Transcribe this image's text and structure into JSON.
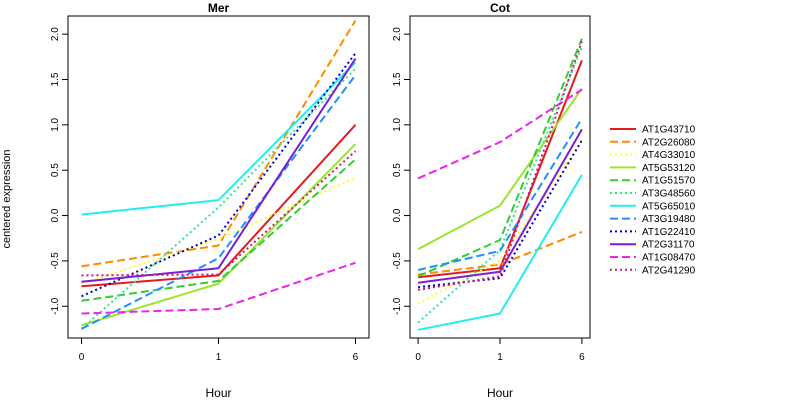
{
  "figure": {
    "ylabel": "centered expression",
    "xlabel": "Hour"
  },
  "chart_data": [
    {
      "type": "line",
      "title": "Mer",
      "xlabel": "Hour",
      "ylabel": "centered expression",
      "x_categories": [
        "0",
        "1",
        "6"
      ],
      "ylim": [
        -1.35,
        2.2
      ],
      "y_ticks": [
        -1.0,
        -0.5,
        0.0,
        0.5,
        1.0,
        1.5,
        2.0
      ],
      "grid": false,
      "series": [
        {
          "name": "AT1G43710",
          "values": [
            -0.78,
            -0.66,
            1.0
          ]
        },
        {
          "name": "AT2G26080",
          "values": [
            -0.56,
            -0.33,
            2.15
          ]
        },
        {
          "name": "AT4G33010",
          "values": [
            -0.75,
            -0.26,
            0.42
          ]
        },
        {
          "name": "AT5G53120",
          "values": [
            -1.21,
            -0.75,
            0.79
          ]
        },
        {
          "name": "AT1G51570",
          "values": [
            -0.94,
            -0.72,
            0.62
          ]
        },
        {
          "name": "AT3G48560",
          "values": [
            -1.25,
            0.09,
            1.62
          ]
        },
        {
          "name": "AT5G65010",
          "values": [
            0.01,
            0.17,
            1.69
          ]
        },
        {
          "name": "AT3G19480",
          "values": [
            -1.25,
            -0.47,
            1.55
          ]
        },
        {
          "name": "AT1G22410",
          "values": [
            -0.89,
            -0.22,
            1.79
          ]
        },
        {
          "name": "AT2G31170",
          "values": [
            -0.73,
            -0.58,
            1.73
          ]
        },
        {
          "name": "AT1G08470",
          "values": [
            -1.08,
            -1.03,
            -0.52
          ]
        },
        {
          "name": "AT2G41290",
          "values": [
            -0.66,
            -0.65,
            0.71
          ]
        }
      ]
    },
    {
      "type": "line",
      "title": "Cot",
      "xlabel": "Hour",
      "ylabel": "",
      "x_categories": [
        "0",
        "1",
        "6"
      ],
      "ylim": [
        -1.35,
        2.2
      ],
      "y_ticks": [
        -1.0,
        -0.5,
        0.0,
        0.5,
        1.0,
        1.5,
        2.0
      ],
      "grid": false,
      "series": [
        {
          "name": "AT1G43710",
          "values": [
            -0.68,
            -0.58,
            1.71
          ]
        },
        {
          "name": "AT2G26080",
          "values": [
            -0.65,
            -0.54,
            -0.18
          ]
        },
        {
          "name": "AT4G33010",
          "values": [
            -0.97,
            -0.5,
            0.83
          ]
        },
        {
          "name": "AT5G53120",
          "values": [
            -0.37,
            0.11,
            1.4
          ]
        },
        {
          "name": "AT1G51570",
          "values": [
            -0.67,
            -0.27,
            1.95
          ]
        },
        {
          "name": "AT3G48560",
          "values": [
            -1.18,
            -0.38,
            1.86
          ]
        },
        {
          "name": "AT5G65010",
          "values": [
            -1.26,
            -1.08,
            0.45
          ]
        },
        {
          "name": "AT3G19480",
          "values": [
            -0.6,
            -0.39,
            1.07
          ]
        },
        {
          "name": "AT1G22410",
          "values": [
            -0.79,
            -0.69,
            0.83
          ]
        },
        {
          "name": "AT2G31170",
          "values": [
            -0.74,
            -0.62,
            0.95
          ]
        },
        {
          "name": "AT1G08470",
          "values": [
            0.41,
            0.81,
            1.39
          ]
        },
        {
          "name": "AT2G41290",
          "values": [
            -0.82,
            -0.67,
            1.92
          ]
        }
      ]
    }
  ],
  "legend": {
    "placement": "right",
    "entries": [
      {
        "name": "AT1G43710",
        "color": "#e41a1c",
        "dash": "solid"
      },
      {
        "name": "AT2G26080",
        "color": "#ff8c00",
        "dash": "dashed"
      },
      {
        "name": "AT4G33010",
        "color": "#ffff33",
        "dash": "dotted"
      },
      {
        "name": "AT5G53120",
        "color": "#99e62e",
        "dash": "solid"
      },
      {
        "name": "AT1G51570",
        "color": "#33cc33",
        "dash": "dashed"
      },
      {
        "name": "AT3G48560",
        "color": "#33e68c",
        "dash": "dotted"
      },
      {
        "name": "AT5G65010",
        "color": "#22eeee",
        "dash": "solid"
      },
      {
        "name": "AT3G19480",
        "color": "#1e90ff",
        "dash": "dashed"
      },
      {
        "name": "AT1G22410",
        "color": "#0000cc",
        "dash": "dotted"
      },
      {
        "name": "AT2G31170",
        "color": "#7b1fd6",
        "dash": "solid"
      },
      {
        "name": "AT1G08470",
        "color": "#ee22ee",
        "dash": "dashed"
      },
      {
        "name": "AT2G41290",
        "color": "#d6147a",
        "dash": "dotted"
      }
    ]
  }
}
